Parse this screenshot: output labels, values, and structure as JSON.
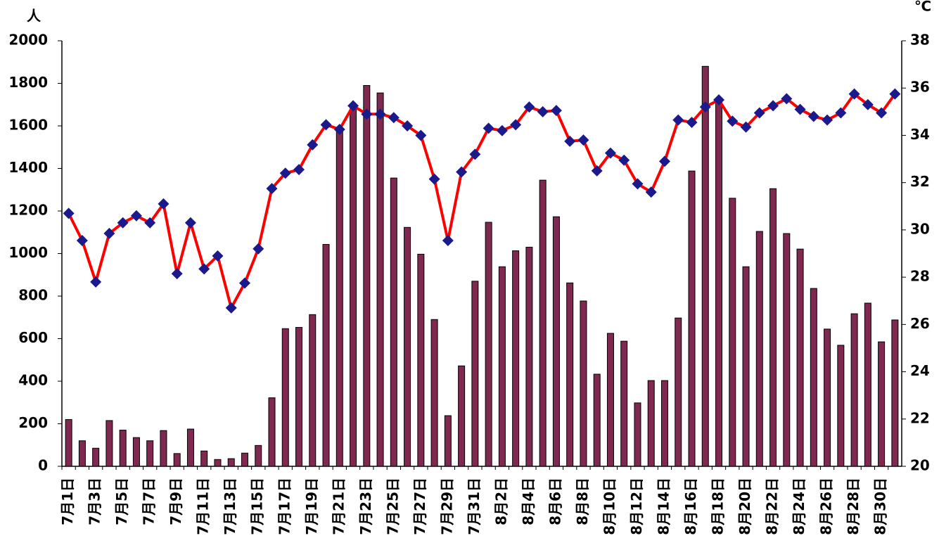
{
  "chart_data": {
    "type": "bar_line",
    "y_label": "人",
    "y2_label": "℃",
    "categories": [
      "7月1日",
      null,
      "7月3日",
      null,
      "7月5日",
      null,
      "7月7日",
      null,
      "7月9日",
      null,
      "7月11日",
      null,
      "7月13日",
      null,
      "7月15日",
      null,
      "7月17日",
      null,
      "7月19日",
      null,
      "7月21日",
      null,
      "7月23日",
      null,
      "7月25日",
      null,
      "7月27日",
      null,
      "7月29日",
      null,
      "7月31日",
      null,
      "8月2日",
      null,
      "8月4日",
      null,
      "8月6日",
      null,
      "8月8日",
      null,
      "8月10日",
      null,
      "8月12日",
      null,
      "8月14日",
      null,
      "8月16日",
      null,
      "8月18日",
      null,
      "8月20日",
      null,
      "8月22日",
      null,
      "8月24日",
      null,
      "8月26日",
      null,
      "8月28日",
      null,
      "8月30日",
      null
    ],
    "series": [
      {
        "type": "bar",
        "color": "#7f2850",
        "values": [
          220,
          120,
          85,
          215,
          170,
          135,
          120,
          168,
          60,
          175,
          72,
          32,
          36,
          62,
          98,
          322,
          647,
          653,
          713,
          1043,
          1580,
          1680,
          1790,
          1755,
          1355,
          1123,
          997,
          690,
          238,
          472,
          870,
          1147,
          938,
          1013,
          1030,
          1345,
          1173,
          862,
          777,
          433,
          625,
          588,
          298,
          403,
          403,
          697,
          1388,
          1880,
          1720,
          1260,
          938,
          1104,
          1305,
          1094,
          1021,
          836,
          645,
          569,
          717,
          767,
          585,
          688
        ]
      },
      {
        "type": "line",
        "axis": "y2",
        "color": "#ff0000",
        "marker_color": "#1a1a8c",
        "values": [
          30.7,
          29.55,
          27.8,
          29.85,
          30.3,
          30.6,
          30.3,
          31.1,
          28.15,
          30.3,
          28.35,
          28.9,
          26.7,
          27.75,
          29.2,
          31.75,
          32.4,
          32.55,
          33.6,
          34.45,
          34.25,
          35.25,
          34.9,
          34.9,
          34.75,
          34.4,
          34.0,
          32.15,
          29.55,
          32.45,
          33.2,
          34.3,
          34.2,
          34.45,
          35.2,
          35.0,
          35.05,
          33.75,
          33.8,
          32.5,
          33.25,
          32.95,
          31.95,
          31.6,
          32.9,
          34.65,
          34.55,
          35.2,
          35.5,
          34.6,
          34.35,
          34.95,
          35.25,
          35.55,
          35.1,
          34.8,
          34.65,
          34.95,
          35.75,
          35.3,
          34.95,
          35.75
        ]
      }
    ],
    "ylim": [
      0,
      2000
    ],
    "yticks": [
      0,
      200,
      400,
      600,
      800,
      1000,
      1200,
      1400,
      1600,
      1800,
      2000
    ],
    "y2lim": [
      20,
      38
    ],
    "y2ticks": [
      20,
      22,
      24,
      26,
      28,
      30,
      32,
      34,
      36,
      38
    ]
  }
}
